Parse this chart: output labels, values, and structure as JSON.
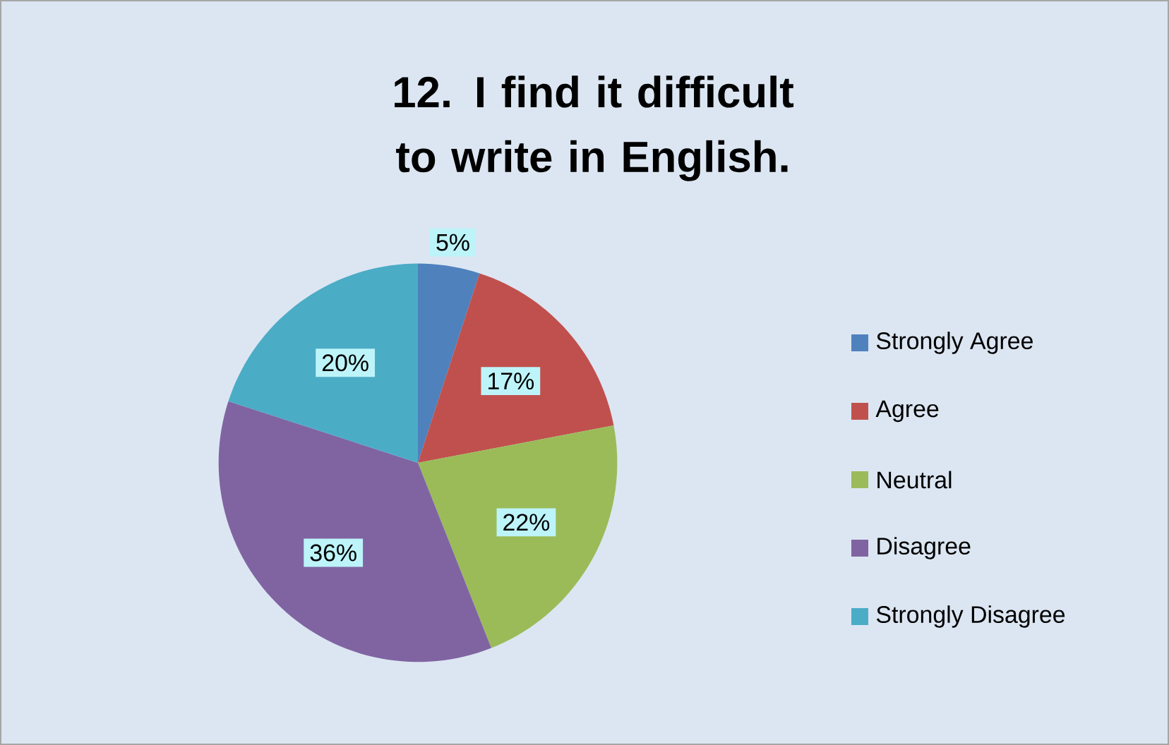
{
  "chart_data": {
    "type": "pie",
    "title": "12. I find it difficult to write in English.",
    "categories": [
      "Strongly Agree",
      "Agree",
      "Neutral",
      "Disagree",
      "Strongly Disagree"
    ],
    "values": [
      5,
      17,
      22,
      36,
      20
    ],
    "colors": [
      "#4f81bd",
      "#c0504d",
      "#9bbb59",
      "#8064a2",
      "#4bacc6"
    ],
    "value_labels": [
      "5%",
      "17%",
      "22%",
      "36%",
      "20%"
    ],
    "legend": "right"
  }
}
